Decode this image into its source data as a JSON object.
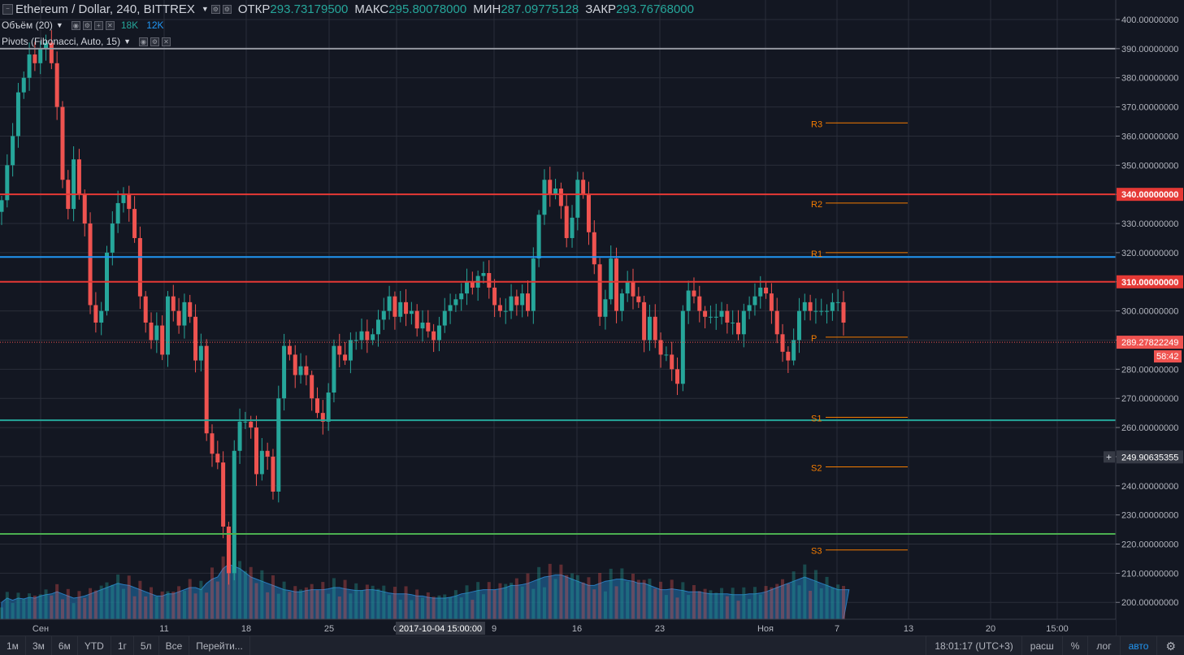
{
  "legend": {
    "symbol": "Ethereum / Dollar, 240, BITTREX",
    "open_label": "ОТКР",
    "open_value": "293.73179500",
    "high_label": "МАКС",
    "high_value": "295.80078000",
    "low_label": "МИН",
    "low_value": "287.09775128",
    "close_label": "ЗАКР",
    "close_value": "293.76768000"
  },
  "indicators": {
    "volume_label": "Объём (20)",
    "volume_val1": "18K",
    "volume_val2": "12K",
    "pivots_label": "Pivots (Fibonacci, Auto, 15)"
  },
  "chart_data": {
    "type": "candlestick",
    "ylim": [
      190,
      405
    ],
    "y_ticks": [
      "200.00000000",
      "210.00000000",
      "220.00000000",
      "230.00000000",
      "240.00000000",
      "250.00000000",
      "260.00000000",
      "270.00000000",
      "280.00000000",
      "290.00000000",
      "300.00000000",
      "310.00000000",
      "320.00000000",
      "330.00000000",
      "340.00000000",
      "350.00000000",
      "360.00000000",
      "370.00000000",
      "380.00000000",
      "390.00000000",
      "400.00000000"
    ],
    "x_ticks": [
      "Сен",
      "11",
      "18",
      "25",
      "О",
      "9",
      "16",
      "23",
      "Ноя",
      "7",
      "13",
      "20",
      "15:00"
    ],
    "x_tooltip": "2017-10-04 15:00:00",
    "close_series": [
      338,
      350,
      360,
      375,
      380,
      388,
      385,
      390,
      392,
      385,
      370,
      345,
      335,
      352,
      340,
      330,
      302,
      296,
      300,
      320,
      330,
      337,
      340,
      335,
      325,
      305,
      296,
      290,
      295,
      285,
      305,
      300,
      295,
      303,
      298,
      283,
      288,
      258,
      251,
      248,
      226,
      210,
      252,
      262,
      262,
      260,
      244,
      252,
      250,
      238,
      270,
      288,
      285,
      278,
      281,
      278,
      270,
      265,
      262,
      272,
      288,
      285,
      283,
      290,
      290,
      293,
      290,
      292,
      297,
      300,
      305,
      298,
      303,
      299,
      300,
      294,
      296,
      293,
      290,
      295,
      300,
      302,
      304,
      306,
      310,
      308,
      312,
      313,
      308,
      302,
      300,
      300,
      305,
      302,
      306,
      300,
      318,
      333,
      345,
      340,
      342,
      336,
      325,
      332,
      345,
      340,
      327,
      316,
      298,
      304,
      318,
      300,
      306,
      310,
      305,
      303,
      290,
      298,
      290,
      285,
      285,
      280,
      275,
      300,
      307,
      305,
      300,
      298,
      298,
      298,
      300,
      296,
      296,
      292,
      300,
      302,
      305,
      308,
      306,
      300,
      292,
      286,
      283,
      290,
      300,
      303,
      300,
      300,
      300,
      300,
      303,
      303,
      296
    ],
    "series": [
      {
        "name": "Volume MA",
        "values": [
          4,
          5,
          4.5,
          5,
          4.8,
          5.2,
          5,
          5.5,
          5.8,
          6,
          6.5,
          6,
          5.5,
          5,
          5.2,
          5.5,
          6,
          6.5,
          7,
          7.5,
          8,
          8.5,
          8.2,
          8,
          7.5,
          7,
          6.5,
          6,
          5.5,
          5.5,
          6,
          6,
          6.5,
          7,
          7.5,
          7.5,
          7,
          8.5,
          9.5,
          10,
          12,
          13,
          12.5,
          12,
          11,
          10,
          9.5,
          9,
          8.5,
          8,
          7.5,
          7,
          6.8,
          6.5,
          6.5,
          6.8,
          7,
          7,
          7,
          7.2,
          7.5,
          7.5,
          7.2,
          7,
          6.8,
          6.8,
          7,
          7,
          6.8,
          6.5,
          6.2,
          6,
          6,
          6,
          5.8,
          5.5,
          5.5,
          5.2,
          5,
          5,
          5,
          5.2,
          5.5,
          6,
          6.2,
          6.5,
          6.8,
          7,
          7,
          7,
          7.2,
          7.5,
          8,
          8,
          8.2,
          8.5,
          9,
          9.5,
          10,
          10.2,
          10.5,
          10.5,
          10,
          9.5,
          9,
          8.5,
          8,
          8,
          8.5,
          9,
          9.2,
          9.5,
          9.5,
          9.2,
          9,
          8.5,
          8.5,
          8,
          7.5,
          7,
          7,
          7.2,
          7,
          6.8,
          6.5,
          6.5,
          6.5,
          6.2,
          6,
          6,
          6,
          6,
          5.8,
          5.8,
          5.8,
          6,
          6,
          6.2,
          6.5,
          7,
          7.5,
          8,
          8.5,
          9,
          9.5,
          10,
          9.5,
          9,
          8.5,
          8,
          7.5,
          7,
          7,
          7
        ]
      }
    ],
    "horizontal_lines": [
      {
        "price": 390,
        "color": "#9598a1"
      },
      {
        "price": 340,
        "color": "#e53935",
        "label": "340.00000000"
      },
      {
        "price": 318.5,
        "color": "#2196f3"
      },
      {
        "price": 310,
        "color": "#e53935",
        "label": "310.00000000"
      },
      {
        "price": 262.5,
        "color": "#26a69a"
      },
      {
        "price": 223.5,
        "color": "#4caf50"
      }
    ],
    "pivots": [
      {
        "label": "R3",
        "price": 364.5
      },
      {
        "label": "R2",
        "price": 337
      },
      {
        "label": "R1",
        "price": 320
      },
      {
        "label": "P",
        "price": 291
      },
      {
        "label": "S1",
        "price": 263.5
      },
      {
        "label": "S2",
        "price": 246.5
      },
      {
        "label": "S3",
        "price": 218
      }
    ],
    "last_price": {
      "value": 289.27822249,
      "label": "289.27822249",
      "timer": "58:42"
    },
    "crosshair": {
      "value": 249.9,
      "label": "249.90635355"
    },
    "colors": {
      "up": "#26a69a",
      "down": "#ef5350",
      "pivot": "#f57c00",
      "volume_area": "#1e5c8c"
    }
  },
  "bottom_bar": {
    "timeframes": [
      "1м",
      "3м",
      "6м",
      "YTD",
      "1г",
      "5л",
      "Все",
      "Перейти..."
    ],
    "time": "18:01:17 (UTC+3)",
    "options": [
      "расш",
      "%",
      "лог",
      "авто"
    ]
  }
}
